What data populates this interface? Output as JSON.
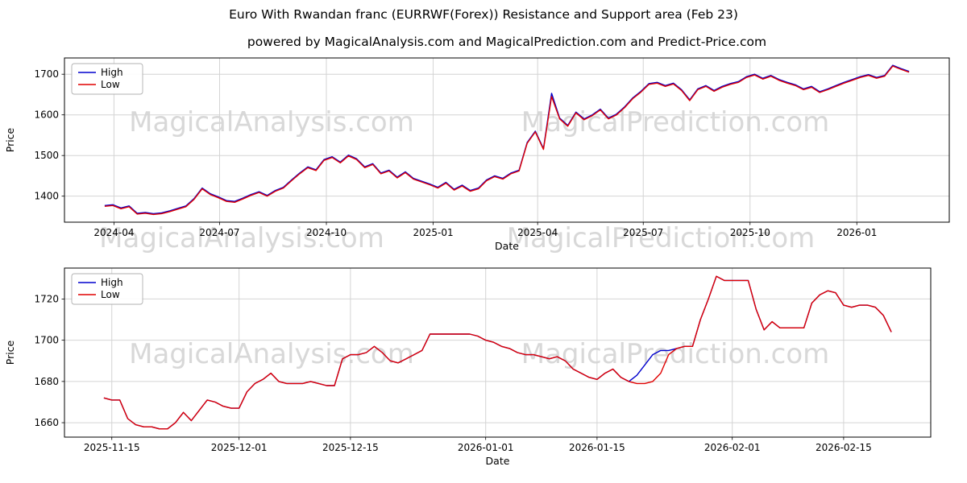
{
  "watermarks": {
    "left": "MagicalAnalysis.com",
    "right": "MagicalPrediction.com"
  },
  "colors": {
    "grid": "#d4d4d4",
    "frame": "#000000",
    "watermark": "#d8d8d8",
    "high": "#0000cd",
    "low": "#e00000"
  },
  "chart_data": [
    {
      "type": "line",
      "title": "Euro With Rwandan franc (EURRWF(Forex)) Resistance and Support area (Feb 23)",
      "subtitle": "powered by MagicalAnalysis.com and MagicalPrediction.com and Predict-Price.com",
      "xlabel": "Date",
      "ylabel": "Price",
      "grid": true,
      "legend_position": "upper left",
      "x_start": "2024-03-24",
      "x_step_days": 7,
      "ylim": [
        1336,
        1740
      ],
      "y_ticks": [
        1400,
        1500,
        1600,
        1700
      ],
      "x_ticks": [
        {
          "date": "2024-04-01",
          "label": "2024-04"
        },
        {
          "date": "2024-07-01",
          "label": "2024-07"
        },
        {
          "date": "2024-10-01",
          "label": "2024-10"
        },
        {
          "date": "2025-01-01",
          "label": "2025-01"
        },
        {
          "date": "2025-04-01",
          "label": "2025-04"
        },
        {
          "date": "2025-07-01",
          "label": "2025-07"
        },
        {
          "date": "2025-10-01",
          "label": "2025-10"
        },
        {
          "date": "2026-01-01",
          "label": "2026-01"
        }
      ],
      "series": [
        {
          "name": "High",
          "color": "#0000cd",
          "values": [
            1377,
            1379,
            1371,
            1376,
            1358,
            1360,
            1357,
            1359,
            1364,
            1370,
            1376,
            1394,
            1420,
            1406,
            1398,
            1389,
            1387,
            1395,
            1404,
            1411,
            1402,
            1414,
            1422,
            1440,
            1457,
            1472,
            1465,
            1490,
            1497,
            1484,
            1501,
            1492,
            1472,
            1480,
            1457,
            1464,
            1447,
            1460,
            1444,
            1437,
            1430,
            1422,
            1434,
            1417,
            1427,
            1414,
            1420,
            1440,
            1450,
            1444,
            1457,
            1464,
            1532,
            1560,
            1517,
            1653,
            1592,
            1574,
            1607,
            1590,
            1600,
            1614,
            1592,
            1602,
            1620,
            1642,
            1658,
            1677,
            1680,
            1672,
            1678,
            1662,
            1637,
            1664,
            1672,
            1660,
            1670,
            1677,
            1682,
            1694,
            1700,
            1690,
            1697,
            1687,
            1680,
            1674,
            1664,
            1670,
            1657,
            1664,
            1672,
            1680,
            1687,
            1694,
            1699,
            1692,
            1697,
            1722,
            1714,
            1707
          ]
        },
        {
          "name": "Low",
          "color": "#e00000",
          "values": [
            1375,
            1377,
            1369,
            1374,
            1356,
            1358,
            1355,
            1357,
            1362,
            1368,
            1374,
            1392,
            1418,
            1404,
            1396,
            1387,
            1385,
            1393,
            1402,
            1409,
            1400,
            1412,
            1420,
            1438,
            1455,
            1470,
            1463,
            1488,
            1495,
            1482,
            1499,
            1490,
            1470,
            1478,
            1455,
            1462,
            1445,
            1458,
            1442,
            1435,
            1428,
            1420,
            1432,
            1415,
            1425,
            1412,
            1418,
            1438,
            1448,
            1442,
            1455,
            1462,
            1530,
            1558,
            1515,
            1645,
            1590,
            1572,
            1605,
            1588,
            1598,
            1612,
            1590,
            1600,
            1618,
            1640,
            1656,
            1675,
            1678,
            1670,
            1676,
            1660,
            1635,
            1662,
            1670,
            1658,
            1668,
            1675,
            1680,
            1692,
            1698,
            1688,
            1695,
            1685,
            1678,
            1672,
            1662,
            1668,
            1655,
            1662,
            1670,
            1678,
            1685,
            1692,
            1697,
            1690,
            1695,
            1720,
            1712,
            1705
          ]
        }
      ]
    },
    {
      "type": "line",
      "title": "",
      "xlabel": "Date",
      "ylabel": "Price",
      "grid": true,
      "legend_position": "upper left",
      "x_start": "2025-11-14",
      "x_step_days": 1,
      "ylim": [
        1653,
        1735
      ],
      "y_ticks": [
        1660,
        1680,
        1700,
        1720
      ],
      "x_ticks": [
        {
          "date": "2025-11-15",
          "label": "2025-11-15"
        },
        {
          "date": "2025-12-01",
          "label": "2025-12-01"
        },
        {
          "date": "2025-12-15",
          "label": "2025-12-15"
        },
        {
          "date": "2026-01-01",
          "label": "2026-01-01"
        },
        {
          "date": "2026-01-15",
          "label": "2026-01-15"
        },
        {
          "date": "2026-02-01",
          "label": "2026-02-01"
        },
        {
          "date": "2026-02-15",
          "label": "2026-02-15"
        }
      ],
      "series": [
        {
          "name": "High",
          "color": "#0000cd",
          "values": [
            1672,
            1671,
            1671,
            1662,
            1659,
            1658,
            1658,
            1657,
            1657,
            1660,
            1665,
            1661,
            1666,
            1671,
            1670,
            1668,
            1667,
            1667,
            1675,
            1679,
            1681,
            1684,
            1680,
            1679,
            1679,
            1679,
            1680,
            1679,
            1678,
            1678,
            1691,
            1693,
            1693,
            1694,
            1697,
            1694,
            1690,
            1689,
            1691,
            1693,
            1695,
            1703,
            1703,
            1703,
            1703,
            1703,
            1703,
            1702,
            1700,
            1699,
            1697,
            1696,
            1694,
            1693,
            1693,
            1692,
            1691,
            1692,
            1690,
            1686,
            1684,
            1682,
            1681,
            1684,
            1686,
            1682,
            1680,
            1683,
            1688,
            1693,
            1695,
            1695,
            1696,
            1697,
            1697,
            1710,
            1720,
            1731,
            1729,
            1729,
            1729,
            1729,
            1715,
            1705,
            1709,
            1706,
            1706,
            1706,
            1706,
            1718,
            1722,
            1724,
            1723,
            1717,
            1716,
            1717,
            1717,
            1716,
            1712,
            1704
          ]
        },
        {
          "name": "Low",
          "color": "#e00000",
          "values": [
            1672,
            1671,
            1671,
            1662,
            1659,
            1658,
            1658,
            1657,
            1657,
            1660,
            1665,
            1661,
            1666,
            1671,
            1670,
            1668,
            1667,
            1667,
            1675,
            1679,
            1681,
            1684,
            1680,
            1679,
            1679,
            1679,
            1680,
            1679,
            1678,
            1678,
            1691,
            1693,
            1693,
            1694,
            1697,
            1694,
            1690,
            1689,
            1691,
            1693,
            1695,
            1703,
            1703,
            1703,
            1703,
            1703,
            1703,
            1702,
            1700,
            1699,
            1697,
            1696,
            1694,
            1693,
            1693,
            1692,
            1691,
            1692,
            1690,
            1686,
            1684,
            1682,
            1681,
            1684,
            1686,
            1682,
            1680,
            1679,
            1679,
            1680,
            1684,
            1693,
            1696,
            1697,
            1697,
            1710,
            1720,
            1731,
            1729,
            1729,
            1729,
            1729,
            1715,
            1705,
            1709,
            1706,
            1706,
            1706,
            1706,
            1718,
            1722,
            1724,
            1723,
            1717,
            1716,
            1717,
            1717,
            1716,
            1712,
            1704
          ]
        }
      ]
    }
  ]
}
